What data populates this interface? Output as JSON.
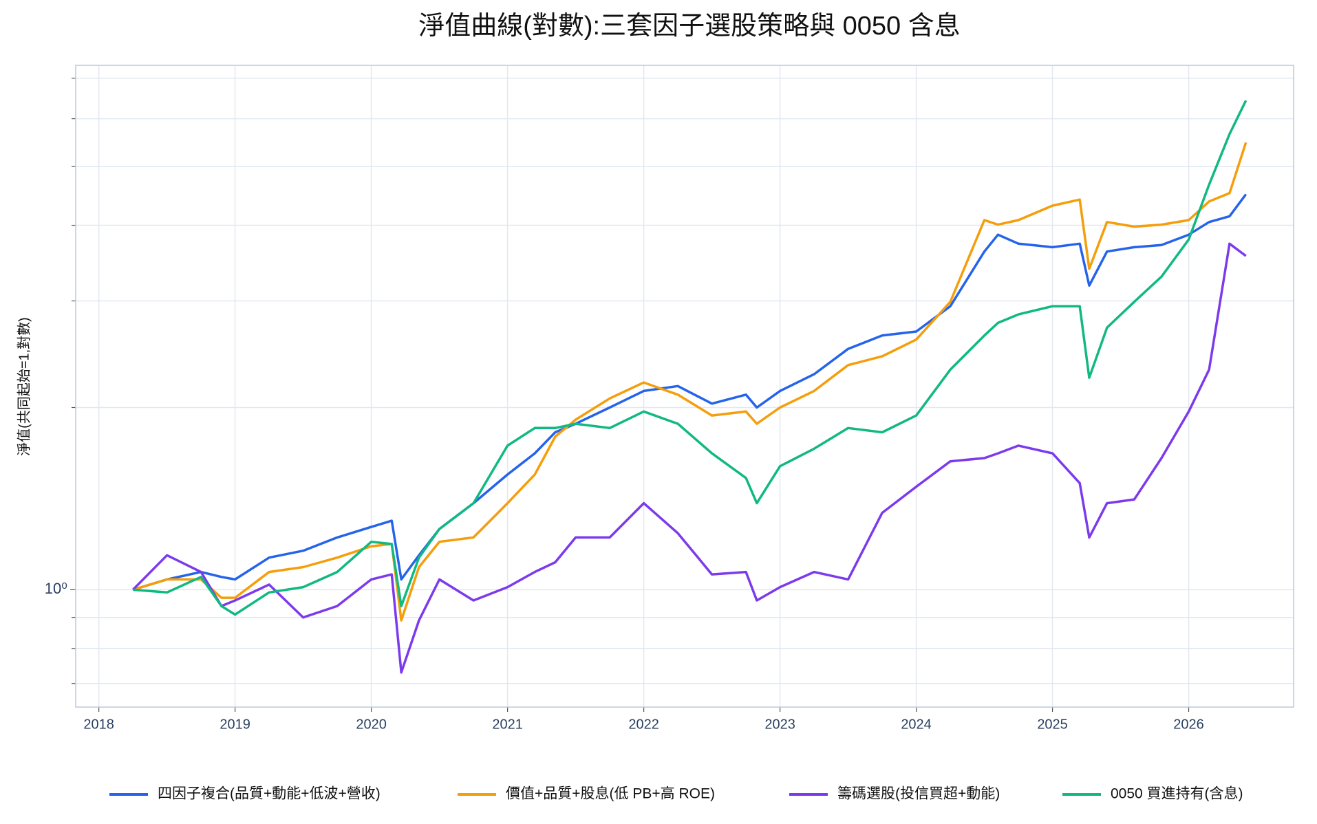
{
  "chart_data": {
    "type": "line",
    "title": "淨值曲線(對數):三套因子選股策略與 0050 含息",
    "y_label": "淨值(共同起始=1,對數)",
    "log_y": true,
    "grid": true,
    "legend": "bottom",
    "xlim": [
      2017.83,
      2026.77
    ],
    "xticks": [
      2018,
      2019,
      2020,
      2021,
      2022,
      2023,
      2024,
      2025,
      2026
    ],
    "ylim": [
      0.64,
      7.35
    ],
    "yticks": [
      {
        "value": 1,
        "label": "10⁰"
      }
    ],
    "yticks_minor": [
      0.7,
      0.8,
      0.9,
      2,
      3,
      4,
      5,
      6,
      7
    ],
    "x": [
      2018.25,
      2018.5,
      2018.75,
      2018.9,
      2019.0,
      2019.25,
      2019.5,
      2019.75,
      2020.0,
      2020.15,
      2020.22,
      2020.35,
      2020.5,
      2020.75,
      2021.0,
      2021.2,
      2021.35,
      2021.5,
      2021.75,
      2022.0,
      2022.25,
      2022.5,
      2022.75,
      2022.83,
      2023.0,
      2023.25,
      2023.5,
      2023.75,
      2024.0,
      2024.25,
      2024.5,
      2024.6,
      2024.75,
      2025.0,
      2025.2,
      2025.27,
      2025.4,
      2025.6,
      2025.8,
      2026.0,
      2026.15,
      2026.3,
      2026.42
    ],
    "series": [
      {
        "name": "四因子複合(品質+動能+低波+營收)",
        "color": "#2563eb",
        "values": [
          1.0,
          1.04,
          1.07,
          1.05,
          1.04,
          1.13,
          1.16,
          1.22,
          1.27,
          1.3,
          1.04,
          1.14,
          1.26,
          1.39,
          1.55,
          1.68,
          1.82,
          1.88,
          2.0,
          2.13,
          2.17,
          2.03,
          2.1,
          2.0,
          2.13,
          2.27,
          2.5,
          2.63,
          2.67,
          2.94,
          3.62,
          3.86,
          3.73,
          3.68,
          3.73,
          3.18,
          3.62,
          3.68,
          3.71,
          3.86,
          4.05,
          4.14,
          4.5
        ]
      },
      {
        "name": "價值+品質+股息(低 PB+高 ROE)",
        "color": "#f59e0b",
        "values": [
          1.0,
          1.04,
          1.04,
          0.97,
          0.97,
          1.07,
          1.09,
          1.13,
          1.18,
          1.19,
          0.89,
          1.09,
          1.2,
          1.22,
          1.39,
          1.55,
          1.79,
          1.91,
          2.07,
          2.2,
          2.1,
          1.94,
          1.97,
          1.88,
          2.0,
          2.13,
          2.35,
          2.43,
          2.59,
          2.99,
          4.08,
          4.01,
          4.08,
          4.31,
          4.41,
          3.39,
          4.05,
          3.98,
          4.01,
          4.08,
          4.38,
          4.52,
          5.48
        ]
      },
      {
        "name": "籌碼選股(投信買超+動能)",
        "color": "#7c3aed",
        "values": [
          1.0,
          1.14,
          1.07,
          0.94,
          0.96,
          1.02,
          0.9,
          0.94,
          1.04,
          1.06,
          0.73,
          0.89,
          1.04,
          0.96,
          1.01,
          1.07,
          1.11,
          1.22,
          1.22,
          1.39,
          1.24,
          1.06,
          1.07,
          0.96,
          1.01,
          1.07,
          1.04,
          1.34,
          1.48,
          1.63,
          1.65,
          1.68,
          1.73,
          1.68,
          1.5,
          1.22,
          1.39,
          1.41,
          1.65,
          1.97,
          2.31,
          3.73,
          3.56
        ]
      },
      {
        "name": "0050 買進持有(含息)",
        "color": "#10b981",
        "values": [
          1.0,
          0.99,
          1.05,
          0.94,
          0.91,
          0.99,
          1.01,
          1.07,
          1.2,
          1.19,
          0.94,
          1.13,
          1.26,
          1.39,
          1.73,
          1.85,
          1.85,
          1.88,
          1.85,
          1.97,
          1.88,
          1.68,
          1.53,
          1.39,
          1.6,
          1.71,
          1.85,
          1.82,
          1.94,
          2.31,
          2.63,
          2.76,
          2.85,
          2.94,
          2.94,
          2.24,
          2.71,
          2.99,
          3.29,
          3.79,
          4.67,
          5.66,
          6.43
        ]
      }
    ]
  }
}
